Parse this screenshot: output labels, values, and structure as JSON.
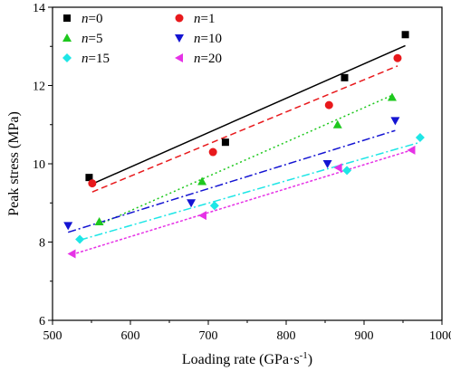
{
  "chart_data": {
    "type": "scatter",
    "xlabel": "Loading rate (GPa·s",
    "xlabel_sup": "-1",
    "xlabel_close": ")",
    "ylabel": "Peak stress (MPa)",
    "xlim": [
      500,
      1000
    ],
    "ylim": [
      6,
      14
    ],
    "xticks": [
      500,
      600,
      700,
      800,
      900,
      1000
    ],
    "yticks": [
      6,
      8,
      10,
      12,
      14
    ],
    "grid": false,
    "legend_position": "top-left",
    "legend_var": "n",
    "series": [
      {
        "name": "n=0",
        "label_value": "0",
        "color": "#000000",
        "marker": "square",
        "line_style": "solid",
        "points": [
          [
            547,
            9.65
          ],
          [
            722,
            10.55
          ],
          [
            875,
            12.2
          ],
          [
            953,
            13.3
          ]
        ],
        "fit": [
          [
            547,
            9.45
          ],
          [
            953,
            13.02
          ]
        ]
      },
      {
        "name": "n=1",
        "label_value": "1",
        "color": "#e8191c",
        "marker": "circle",
        "line_style": "dash",
        "points": [
          [
            551,
            9.5
          ],
          [
            706,
            10.3
          ],
          [
            855,
            11.5
          ],
          [
            943,
            12.7
          ]
        ],
        "fit": [
          [
            551,
            9.28
          ],
          [
            943,
            12.5
          ]
        ]
      },
      {
        "name": "n=5",
        "label_value": "5",
        "color": "#1ec81e",
        "marker": "triangle-up",
        "line_style": "dot",
        "points": [
          [
            560,
            8.52
          ],
          [
            692,
            9.55
          ],
          [
            866,
            11.0
          ],
          [
            936,
            11.7
          ]
        ],
        "fit": [
          [
            560,
            8.45
          ],
          [
            936,
            11.75
          ]
        ]
      },
      {
        "name": "n=10",
        "label_value": "10",
        "color": "#1414d2",
        "marker": "triangle-down",
        "line_style": "dashdot",
        "points": [
          [
            520,
            8.42
          ],
          [
            678,
            9.0
          ],
          [
            853,
            10.0
          ],
          [
            940,
            11.1
          ]
        ],
        "fit": [
          [
            520,
            8.25
          ],
          [
            940,
            10.85
          ]
        ]
      },
      {
        "name": "n=15",
        "label_value": "15",
        "color": "#1ee6e6",
        "marker": "diamond",
        "line_style": "dashdot",
        "points": [
          [
            535,
            8.07
          ],
          [
            708,
            8.93
          ],
          [
            878,
            9.83
          ],
          [
            972,
            10.67
          ]
        ],
        "fit": [
          [
            535,
            8.05
          ],
          [
            972,
            10.55
          ]
        ]
      },
      {
        "name": "n=20",
        "label_value": "20",
        "color": "#e632e6",
        "marker": "triangle-left",
        "line_style": "shortdash",
        "points": [
          [
            525,
            7.7
          ],
          [
            693,
            8.68
          ],
          [
            867,
            9.9
          ],
          [
            961,
            10.35
          ]
        ],
        "fit": [
          [
            525,
            7.68
          ],
          [
            961,
            10.35
          ]
        ]
      }
    ]
  }
}
